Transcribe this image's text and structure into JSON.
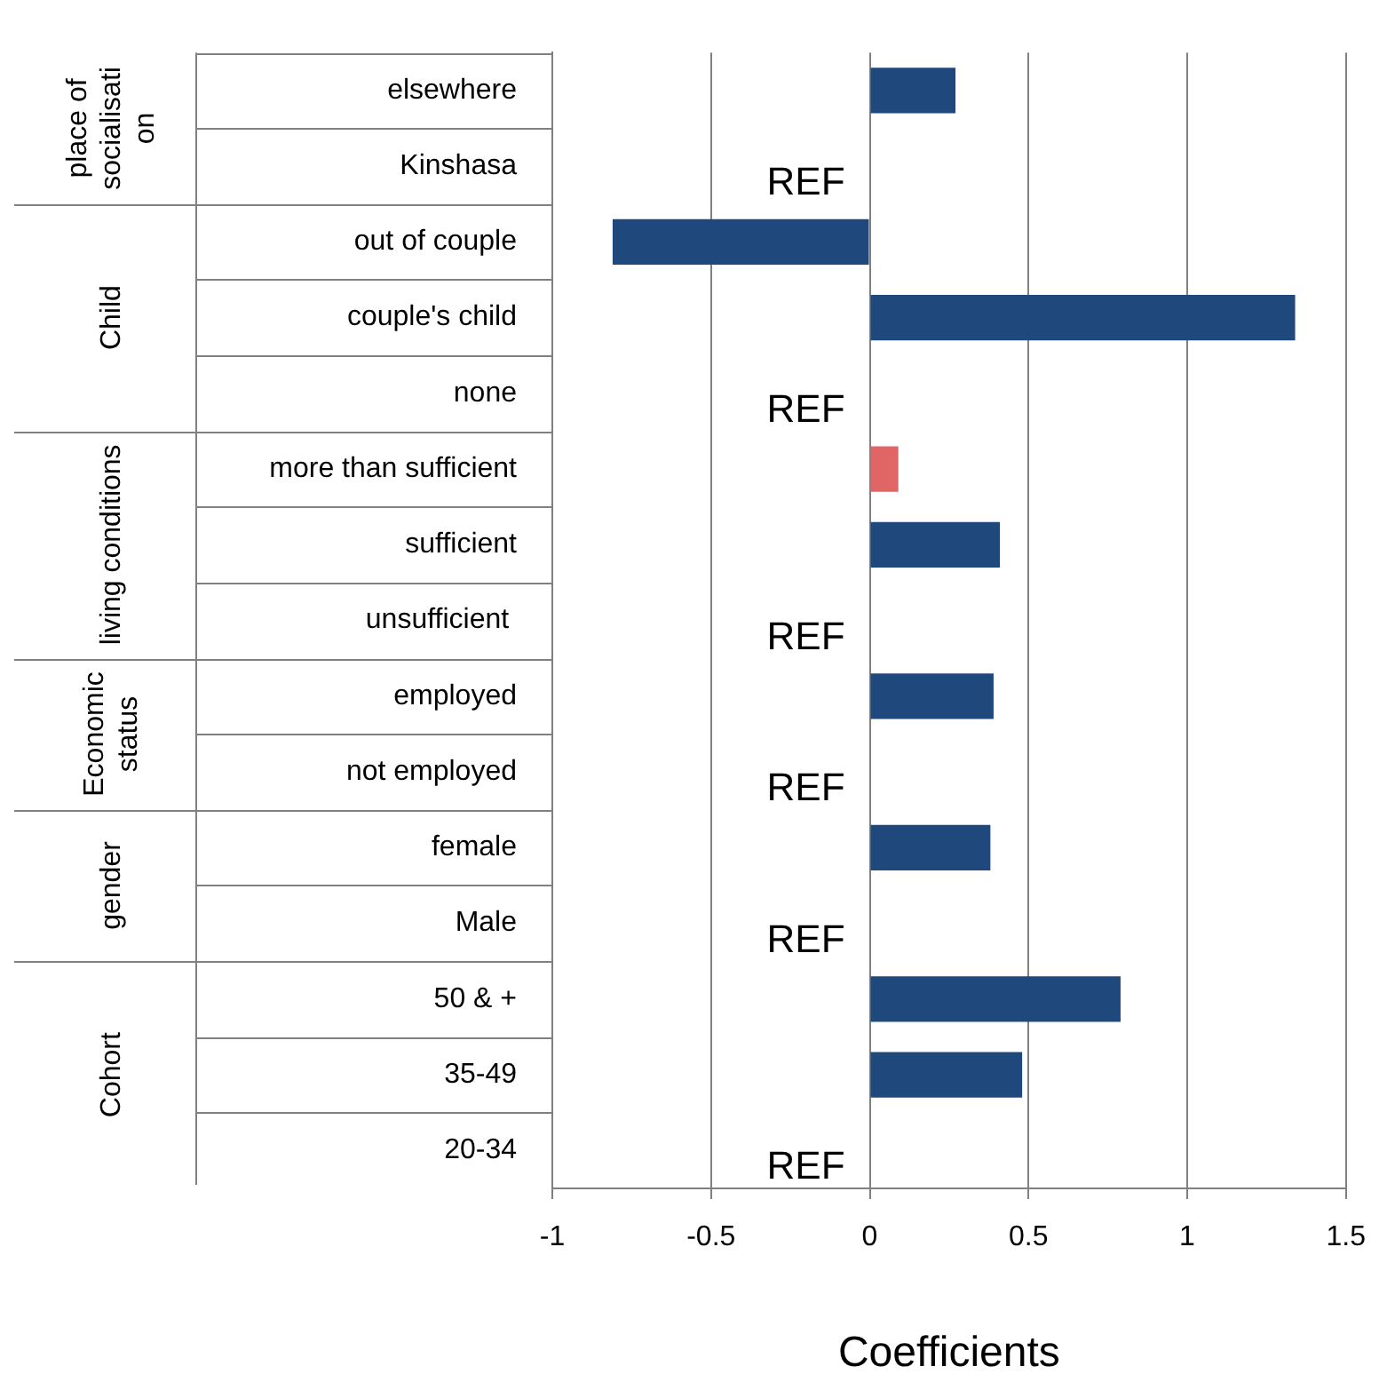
{
  "chart_data": {
    "type": "bar",
    "orientation": "horizontal",
    "xlabel": "Coefficients",
    "categories": [
      "elsewhere",
      "Kinshasa",
      "out of couple",
      "couple's child",
      "none",
      "more than sufficient",
      "sufficient",
      "unsufficient ",
      "employed",
      "not employed",
      "female",
      "Male",
      "50 & +",
      "35-49",
      "20-34"
    ],
    "values": [
      0.27,
      null,
      -0.81,
      1.34,
      null,
      0.09,
      0.41,
      null,
      0.39,
      null,
      0.38,
      null,
      0.79,
      0.48,
      null
    ],
    "colors": [
      "#1f497d",
      "#1f497d",
      "#1f497d",
      "#1f497d",
      "#1f497d",
      "#e06666",
      "#1f497d",
      "#1f497d",
      "#1f497d",
      "#1f497d",
      "#1f497d",
      "#1f497d",
      "#1f497d",
      "#1f497d",
      "#1f497d"
    ],
    "xlim": [
      -1,
      1.5
    ],
    "xticks": [
      -1,
      -0.5,
      0,
      0.5,
      1,
      1.5
    ],
    "grid": "x",
    "annotations": [
      "place of socialisati on",
      "Child",
      "living conditions",
      "Economic status",
      "gender",
      "Cohort",
      "REF",
      "REF",
      "REF",
      "REF",
      "REF",
      "REF"
    ]
  }
}
